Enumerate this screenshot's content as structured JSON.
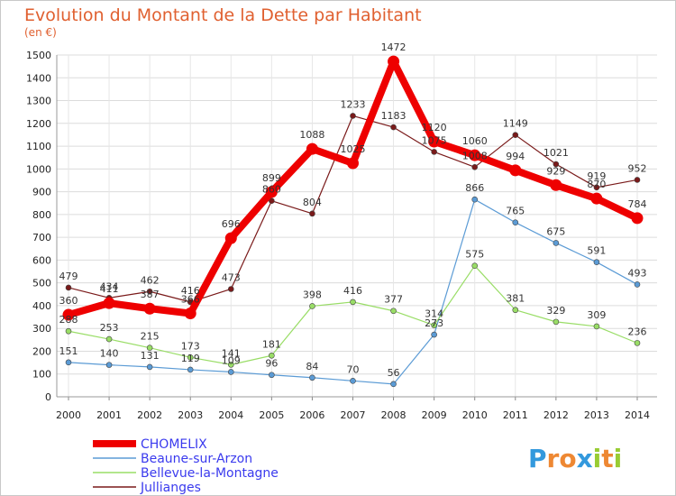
{
  "chart_data": {
    "type": "line",
    "title": "Evolution du Montant de la Dette par Habitant",
    "subtitle": "(en €)",
    "x": [
      "2000",
      "2001",
      "2002",
      "2003",
      "2004",
      "2005",
      "2006",
      "2007",
      "2008",
      "2009",
      "2010",
      "2011",
      "2012",
      "2013",
      "2014"
    ],
    "ylim": [
      0,
      1500
    ],
    "yticks": [
      0,
      100,
      200,
      300,
      400,
      500,
      600,
      700,
      800,
      900,
      1000,
      1100,
      1200,
      1300,
      1400,
      1500
    ],
    "grid": true,
    "legend_position": "bottom-left",
    "series": [
      {
        "name": "CHOMELIX",
        "color": "#ee0000",
        "values": [
          360,
          411,
          387,
          366,
          696,
          899,
          1088,
          1025,
          1472,
          1120,
          1060,
          994,
          929,
          870,
          784
        ]
      },
      {
        "name": "Beaune-sur-Arzon",
        "color": "#5b9bd5",
        "values": [
          151,
          140,
          131,
          119,
          109,
          96,
          84,
          70,
          56,
          273,
          866,
          765,
          675,
          591,
          493
        ]
      },
      {
        "name": "Bellevue-la-Montagne",
        "color": "#99dd66",
        "values": [
          288,
          253,
          215,
          173,
          141,
          181,
          398,
          416,
          377,
          314,
          575,
          381,
          329,
          309,
          236
        ]
      },
      {
        "name": "Jullianges",
        "color": "#7a1a1a",
        "values": [
          479,
          434,
          462,
          416,
          473,
          860,
          804,
          1233,
          1183,
          1075,
          1008,
          1149,
          1021,
          919,
          952
        ]
      }
    ]
  },
  "logo": {
    "letters": [
      "P",
      "r",
      "o",
      "x",
      "i",
      "t",
      "i"
    ],
    "colors": [
      "#3399dd",
      "#ee8833",
      "#ee8833",
      "#3399dd",
      "#99cc33",
      "#ee8833",
      "#99cc33"
    ]
  }
}
